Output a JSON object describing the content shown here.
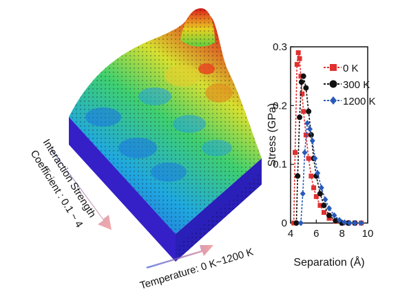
{
  "surface": {
    "left_label_line1": "Interaction Strength",
    "left_label_line2": "Coefficient : 0.1 ~ 4",
    "bottom_label": "Temperature: 0 K~1200 K"
  },
  "chart_data": {
    "type": "scatter",
    "xlabel": "Separation (Å)",
    "ylabel": "Stress (GPa)",
    "xlim": [
      4,
      10
    ],
    "ylim": [
      0,
      0.3
    ],
    "x_ticks": [
      "4",
      "6",
      "8",
      "10"
    ],
    "y_ticks": [
      "0",
      "0.1",
      "0.2",
      "0.3"
    ],
    "legend_position": "top-right",
    "series": [
      {
        "name": "0 K",
        "color": "#e03030",
        "marker": "square",
        "x": [
          4.25,
          4.35,
          4.5,
          4.6,
          4.7,
          4.8,
          4.9,
          5.0,
          5.2,
          5.4,
          5.6,
          5.8,
          6.0,
          6.3,
          6.6,
          7.0,
          7.5,
          8.0,
          8.5,
          9.0,
          9.5
        ],
        "y": [
          0.0,
          0.12,
          0.27,
          0.29,
          0.28,
          0.25,
          0.22,
          0.19,
          0.15,
          0.11,
          0.08,
          0.06,
          0.045,
          0.03,
          0.018,
          0.008,
          0.003,
          0.0,
          0.0,
          0.0,
          0.0
        ]
      },
      {
        "name": "300 K",
        "color": "#111111",
        "marker": "circle",
        "x": [
          4.45,
          4.55,
          4.7,
          4.85,
          5.0,
          5.2,
          5.4,
          5.6,
          5.8,
          6.0,
          6.3,
          6.6,
          7.0,
          7.5,
          8.0,
          8.5,
          9.0
        ],
        "y": [
          0.0,
          0.08,
          0.18,
          0.24,
          0.25,
          0.23,
          0.19,
          0.15,
          0.11,
          0.08,
          0.05,
          0.03,
          0.013,
          0.004,
          0.0,
          0.0,
          0.0
        ]
      },
      {
        "name": "1200 K",
        "color": "#2a5ab8",
        "marker": "diamond",
        "x": [
          4.8,
          4.95,
          5.1,
          5.3,
          5.5,
          5.7,
          5.9,
          6.1,
          6.4,
          6.7,
          7.0,
          7.4,
          7.8,
          8.2,
          8.6,
          9.0,
          9.5
        ],
        "y": [
          0.0,
          0.05,
          0.12,
          0.17,
          0.16,
          0.14,
          0.11,
          0.085,
          0.06,
          0.04,
          0.025,
          0.013,
          0.005,
          0.001,
          0.0,
          0.0,
          0.0
        ]
      }
    ]
  }
}
